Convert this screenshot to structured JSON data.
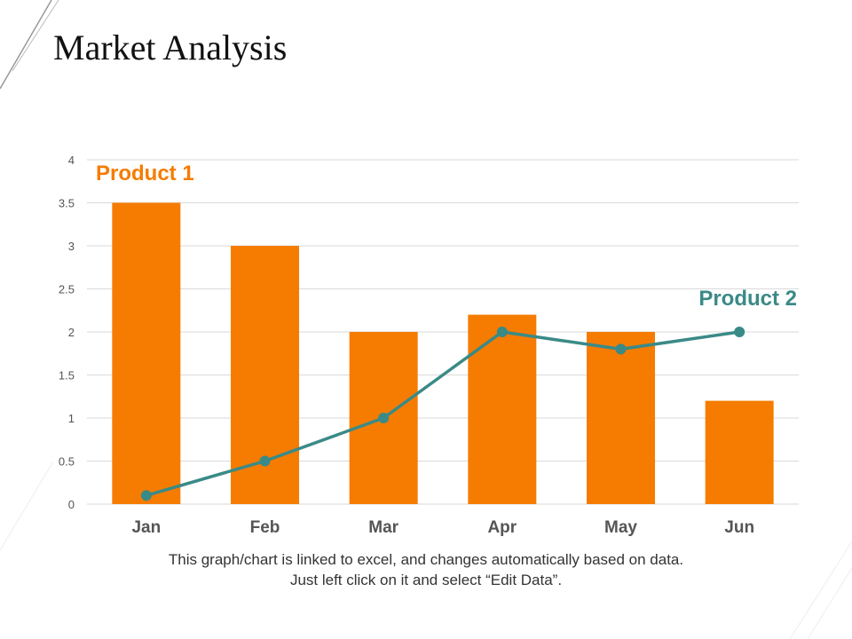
{
  "slide": {
    "title": "Market Analysis",
    "caption_line1": "This graph/chart is linked to excel, and changes automatically based on data.",
    "caption_line2": "Just left click on it and select “Edit Data”."
  },
  "chart_data": {
    "type": "bar",
    "title": "",
    "xlabel": "",
    "ylabel": "",
    "categories": [
      "Jan",
      "Feb",
      "Mar",
      "Apr",
      "May",
      "Jun"
    ],
    "ylim": [
      0,
      4
    ],
    "yticks": [
      "0",
      "0.5",
      "1",
      "1.5",
      "2",
      "2.5",
      "3",
      "3.5",
      "4"
    ],
    "grid": true,
    "series": [
      {
        "name": "Product 1",
        "type": "bar",
        "color": "#F57C00",
        "values": [
          3.5,
          3.0,
          2.0,
          2.2,
          2.0,
          1.2
        ]
      },
      {
        "name": "Product 2",
        "type": "line",
        "color": "#3A8A87",
        "values": [
          0.1,
          0.5,
          1.0,
          2.0,
          1.8,
          2.0
        ]
      }
    ]
  }
}
